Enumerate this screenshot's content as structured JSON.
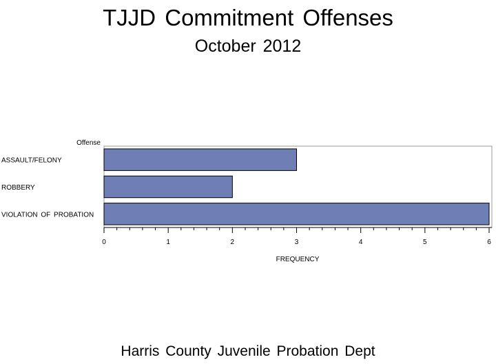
{
  "page": {
    "title": "TJJD Commitment Offenses",
    "subtitle": "October 2012",
    "footnote": "Harris County Juvenile Probation Dept"
  },
  "chart_data": {
    "type": "bar",
    "orientation": "horizontal",
    "category_axis_label": "Offense",
    "categories": [
      "ASSAULT/FELONY",
      "ROBBERY",
      "VIOLATION OF PROBATION"
    ],
    "values": [
      3,
      2,
      6
    ],
    "xlabel": "FREQUENCY",
    "xlim": [
      0,
      6
    ],
    "xticks": [
      "0",
      "1",
      "2",
      "3",
      "4",
      "5",
      "6"
    ],
    "grid": false,
    "legend": "none",
    "colors": {
      "bar_fill": "#6f7fb5",
      "bar_stroke": "#000000",
      "frame": "#9a9a9a"
    }
  }
}
